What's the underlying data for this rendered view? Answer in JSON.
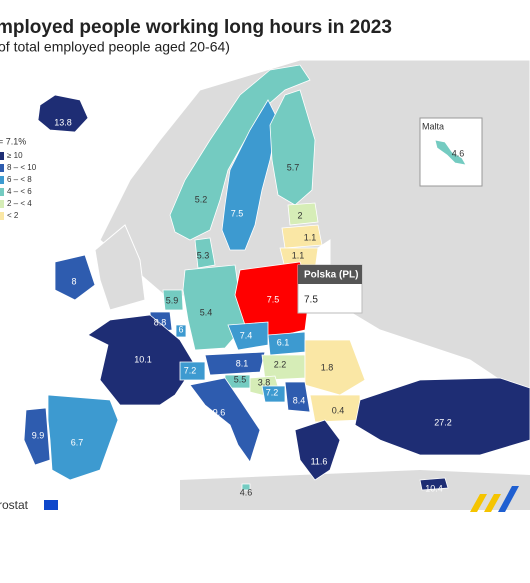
{
  "title": "mployed people working long hours in 2023",
  "subtitle": "of total employed people aged 20-64)",
  "legend": {
    "heading": "= 7.1%",
    "items": [
      {
        "label": "≥ 10",
        "color": "#1e2d74"
      },
      {
        "label": "8 – < 10",
        "color": "#2e5caf"
      },
      {
        "label": "6 – < 8",
        "color": "#3d9ad0"
      },
      {
        "label": "4 – < 6",
        "color": "#74cbc1"
      },
      {
        "label": "2 – < 4",
        "color": "#d6edb7"
      },
      {
        "label": "< 2",
        "color": "#fae7a5"
      }
    ]
  },
  "inset_label": "Malta",
  "tooltip": {
    "title": "Polska (PL)",
    "value": 7.5
  },
  "source": "rostat",
  "regions": [
    {
      "value": 13.8,
      "color": "#1e2d74"
    },
    {
      "value": 4.6,
      "color": "#74cbc1"
    },
    {
      "value": 5.2,
      "color": "#74cbc1"
    },
    {
      "value": 7.5,
      "color": "#3d9ad0"
    },
    {
      "value": 5.7,
      "color": "#74cbc1"
    },
    {
      "value": 2.0,
      "color": "#d6edb7"
    },
    {
      "value": 1.1,
      "color": "#fae7a5"
    },
    {
      "value": 1.1,
      "color": "#fae7a5"
    },
    {
      "value": 5.3,
      "color": "#74cbc1"
    },
    {
      "value": 8.0,
      "color": "#2e5caf"
    },
    {
      "value": 5.9,
      "color": "#74cbc1"
    },
    {
      "value": 8.8,
      "color": "#2e5caf"
    },
    {
      "value": 6.0,
      "color": "#3d9ad0"
    },
    {
      "value": 5.4,
      "color": "#74cbc1"
    },
    {
      "value": 7.5,
      "color": "#ff0000"
    },
    {
      "value": 7.4,
      "color": "#3d9ad0"
    },
    {
      "value": 6.1,
      "color": "#3d9ad0"
    },
    {
      "value": 10.1,
      "color": "#1e2d74"
    },
    {
      "value": 7.2,
      "color": "#3d9ad0"
    },
    {
      "value": 8.1,
      "color": "#2e5caf"
    },
    {
      "value": 2.2,
      "color": "#d6edb7"
    },
    {
      "value": 1.8,
      "color": "#fae7a5"
    },
    {
      "value": 5.5,
      "color": "#74cbc1"
    },
    {
      "value": 3.8,
      "color": "#d6edb7"
    },
    {
      "value": 7.2,
      "color": "#3d9ad0"
    },
    {
      "value": 8.4,
      "color": "#2e5caf"
    },
    {
      "value": 0.4,
      "color": "#fae7a5"
    },
    {
      "value": 9.6,
      "color": "#2e5caf"
    },
    {
      "value": 4.6,
      "color": "#74cbc1"
    },
    {
      "value": 6.7,
      "color": "#3d9ad0"
    },
    {
      "value": 9.9,
      "color": "#2e5caf"
    },
    {
      "value": 11.6,
      "color": "#1e2d74"
    },
    {
      "value": 27.2,
      "color": "#1e2d74"
    },
    {
      "value": 10.4,
      "color": "#1e2d74"
    }
  ]
}
